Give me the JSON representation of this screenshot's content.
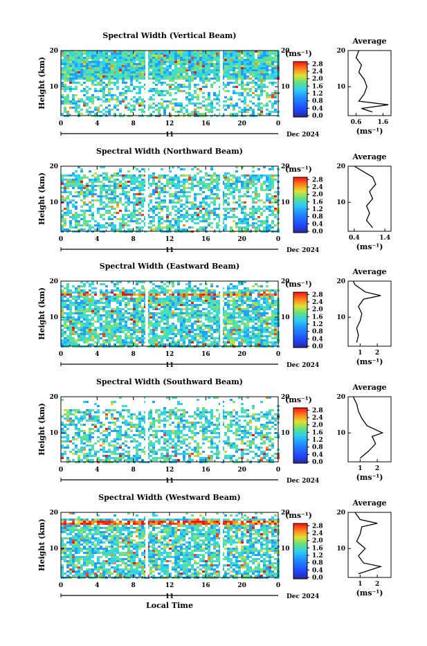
{
  "figure": {
    "xlabel": "Local Time",
    "date_label": "Dec 2024",
    "day_label": "11"
  },
  "colorbar": {
    "unit": "(ms⁻¹)",
    "ticks": [
      "0.0",
      "0.4",
      "0.8",
      "1.2",
      "1.6",
      "2.0",
      "2.4",
      "2.8"
    ]
  },
  "avg_xlabel": "(ms⁻¹)",
  "chart_data": [
    {
      "type": "heatmap",
      "title": "Spectral Width (Vertical Beam)",
      "ylabel": "Height (km)",
      "xticks": [
        "0",
        "4",
        "8",
        "12",
        "16",
        "20",
        "0"
      ],
      "yticks": [
        "10",
        "20"
      ],
      "x_range_hours": [
        0,
        24
      ],
      "y_range_km": [
        2,
        20
      ],
      "color_range": [
        0,
        3.0
      ],
      "average": {
        "title": "Average",
        "xticks": [
          "0.6",
          "1.6"
        ],
        "xlim": [
          0.3,
          1.9
        ],
        "ylim": [
          2,
          20
        ],
        "yticks": [
          "10",
          "20"
        ],
        "profile": [
          {
            "h": 3,
            "v": 1.2
          },
          {
            "h": 4,
            "v": 0.8
          },
          {
            "h": 5,
            "v": 1.8
          },
          {
            "h": 6,
            "v": 0.7
          },
          {
            "h": 8,
            "v": 0.9
          },
          {
            "h": 10,
            "v": 1.0
          },
          {
            "h": 12,
            "v": 0.9
          },
          {
            "h": 14,
            "v": 0.7
          },
          {
            "h": 16,
            "v": 0.8
          },
          {
            "h": 18,
            "v": 0.6
          },
          {
            "h": 20,
            "v": 0.7
          }
        ]
      }
    },
    {
      "type": "heatmap",
      "title": "Spectral Width (Northward Beam)",
      "ylabel": "Height (km)",
      "xticks": [
        "0",
        "4",
        "8",
        "12",
        "16",
        "20",
        "0"
      ],
      "yticks": [
        "10",
        "20"
      ],
      "x_range_hours": [
        0,
        24
      ],
      "y_range_km": [
        2,
        20
      ],
      "color_range": [
        0,
        3.0
      ],
      "average": {
        "title": "Average",
        "xticks": [
          "0.4",
          "1.4"
        ],
        "xlim": [
          0.2,
          1.6
        ],
        "ylim": [
          2,
          20
        ],
        "yticks": [
          "10",
          "20"
        ],
        "profile": [
          {
            "h": 3,
            "v": 1.0
          },
          {
            "h": 5,
            "v": 0.8
          },
          {
            "h": 7,
            "v": 0.9
          },
          {
            "h": 9,
            "v": 0.8
          },
          {
            "h": 11,
            "v": 1.0
          },
          {
            "h": 13,
            "v": 0.9
          },
          {
            "h": 15,
            "v": 1.1
          },
          {
            "h": 17,
            "v": 1.0
          },
          {
            "h": 19,
            "v": 0.6
          },
          {
            "h": 20,
            "v": 0.4
          }
        ]
      }
    },
    {
      "type": "heatmap",
      "title": "Spectral Width (Eastward Beam)",
      "ylabel": "Height (km)",
      "xticks": [
        "0",
        "4",
        "8",
        "12",
        "16",
        "20",
        "0"
      ],
      "yticks": [
        "10",
        "20"
      ],
      "x_range_hours": [
        0,
        24
      ],
      "y_range_km": [
        2,
        20
      ],
      "color_range": [
        0,
        3.0
      ],
      "average": {
        "title": "Average",
        "xticks": [
          "1",
          "2"
        ],
        "xlim": [
          0.3,
          2.8
        ],
        "ylim": [
          2,
          20
        ],
        "yticks": [
          "10",
          "20"
        ],
        "profile": [
          {
            "h": 3,
            "v": 0.8
          },
          {
            "h": 5,
            "v": 0.9
          },
          {
            "h": 7,
            "v": 0.8
          },
          {
            "h": 9,
            "v": 1.0
          },
          {
            "h": 11,
            "v": 1.1
          },
          {
            "h": 13,
            "v": 0.9
          },
          {
            "h": 15,
            "v": 1.2
          },
          {
            "h": 16,
            "v": 2.2
          },
          {
            "h": 17,
            "v": 1.3
          },
          {
            "h": 19,
            "v": 0.7
          },
          {
            "h": 20,
            "v": 0.6
          }
        ]
      }
    },
    {
      "type": "heatmap",
      "title": "Spectral Width (Southward Beam)",
      "ylabel": "Height (km)",
      "xticks": [
        "0",
        "4",
        "8",
        "12",
        "16",
        "20",
        "0"
      ],
      "yticks": [
        "10",
        "20"
      ],
      "x_range_hours": [
        0,
        24
      ],
      "y_range_km": [
        2,
        20
      ],
      "color_range": [
        0,
        3.0
      ],
      "average": {
        "title": "Average",
        "xticks": [
          "1",
          "2"
        ],
        "xlim": [
          0.3,
          2.8
        ],
        "ylim": [
          2,
          20
        ],
        "yticks": [
          "10",
          "20"
        ],
        "profile": [
          {
            "h": 3,
            "v": 1.0
          },
          {
            "h": 5,
            "v": 1.5
          },
          {
            "h": 7,
            "v": 1.9
          },
          {
            "h": 9,
            "v": 1.7
          },
          {
            "h": 10,
            "v": 2.3
          },
          {
            "h": 12,
            "v": 1.4
          },
          {
            "h": 14,
            "v": 1.1
          },
          {
            "h": 16,
            "v": 0.9
          },
          {
            "h": 18,
            "v": 0.8
          },
          {
            "h": 20,
            "v": 0.6
          }
        ]
      }
    },
    {
      "type": "heatmap",
      "title": "Spectral Width (Westward Beam)",
      "ylabel": "Height (km)",
      "xticks": [
        "0",
        "4",
        "8",
        "12",
        "16",
        "20",
        "0"
      ],
      "yticks": [
        "10",
        "20"
      ],
      "x_range_hours": [
        0,
        24
      ],
      "y_range_km": [
        2,
        20
      ],
      "color_range": [
        0,
        3.0
      ],
      "average": {
        "title": "Average",
        "xticks": [
          "1",
          "2"
        ],
        "xlim": [
          0.3,
          2.8
        ],
        "ylim": [
          2,
          20
        ],
        "yticks": [
          "10",
          "20"
        ],
        "profile": [
          {
            "h": 3,
            "v": 0.9
          },
          {
            "h": 5,
            "v": 2.2
          },
          {
            "h": 6,
            "v": 1.2
          },
          {
            "h": 8,
            "v": 0.9
          },
          {
            "h": 10,
            "v": 1.3
          },
          {
            "h": 12,
            "v": 0.8
          },
          {
            "h": 14,
            "v": 1.0
          },
          {
            "h": 16,
            "v": 1.1
          },
          {
            "h": 17,
            "v": 2.0
          },
          {
            "h": 18,
            "v": 1.0
          },
          {
            "h": 20,
            "v": 0.7
          }
        ]
      }
    }
  ]
}
